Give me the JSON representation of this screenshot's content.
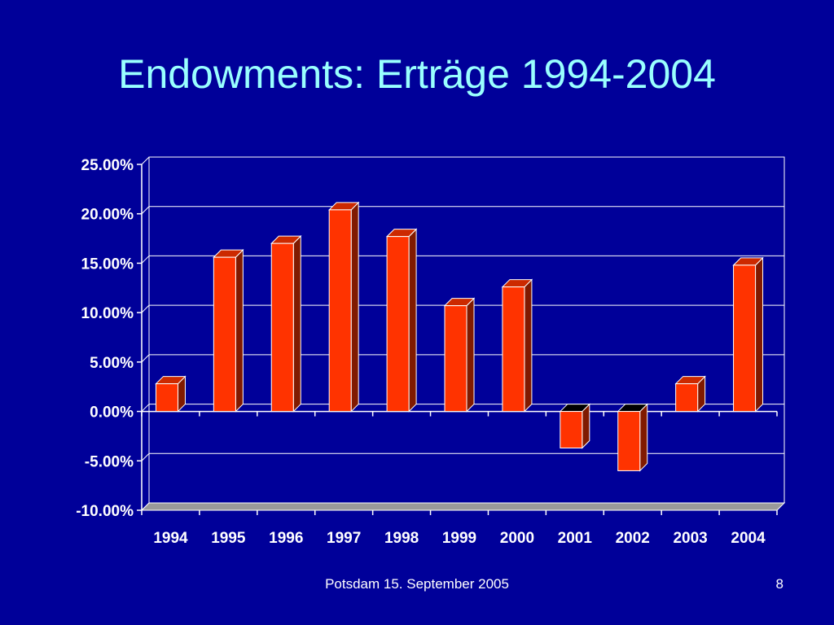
{
  "slide": {
    "title": "Endowments: Erträge 1994-2004",
    "footer": "Potsdam 15. September 2005",
    "page_number": "8"
  },
  "colors": {
    "background": "#000099",
    "title": "#99ffff",
    "bar_front": "#ff3300",
    "bar_top": "#cc2900",
    "bar_side": "#801a00",
    "bar_outline": "#ffffff",
    "axis": "#ffffff",
    "grid": "#ffffff"
  },
  "chart_data": {
    "type": "bar",
    "title": "",
    "xlabel": "",
    "ylabel": "",
    "categories": [
      "1994",
      "1995",
      "1996",
      "1997",
      "1998",
      "1999",
      "2000",
      "2001",
      "2002",
      "2003",
      "2004"
    ],
    "series": [
      {
        "values": [
          2.8,
          15.6,
          17.0,
          20.4,
          17.7,
          10.7,
          12.6,
          -3.7,
          -6.0,
          2.8,
          14.8
        ]
      }
    ],
    "ylim": [
      -10,
      25
    ],
    "yticks": [
      25,
      20,
      15,
      10,
      5,
      0,
      -5,
      -10
    ],
    "ytick_labels": [
      "25.00%",
      "20.00%",
      "15.00%",
      "10.00%",
      "5.00%",
      "0.00%",
      "-5.00%",
      "-10.00%"
    ],
    "grid": true,
    "legend": "none",
    "style": "3d-column"
  }
}
